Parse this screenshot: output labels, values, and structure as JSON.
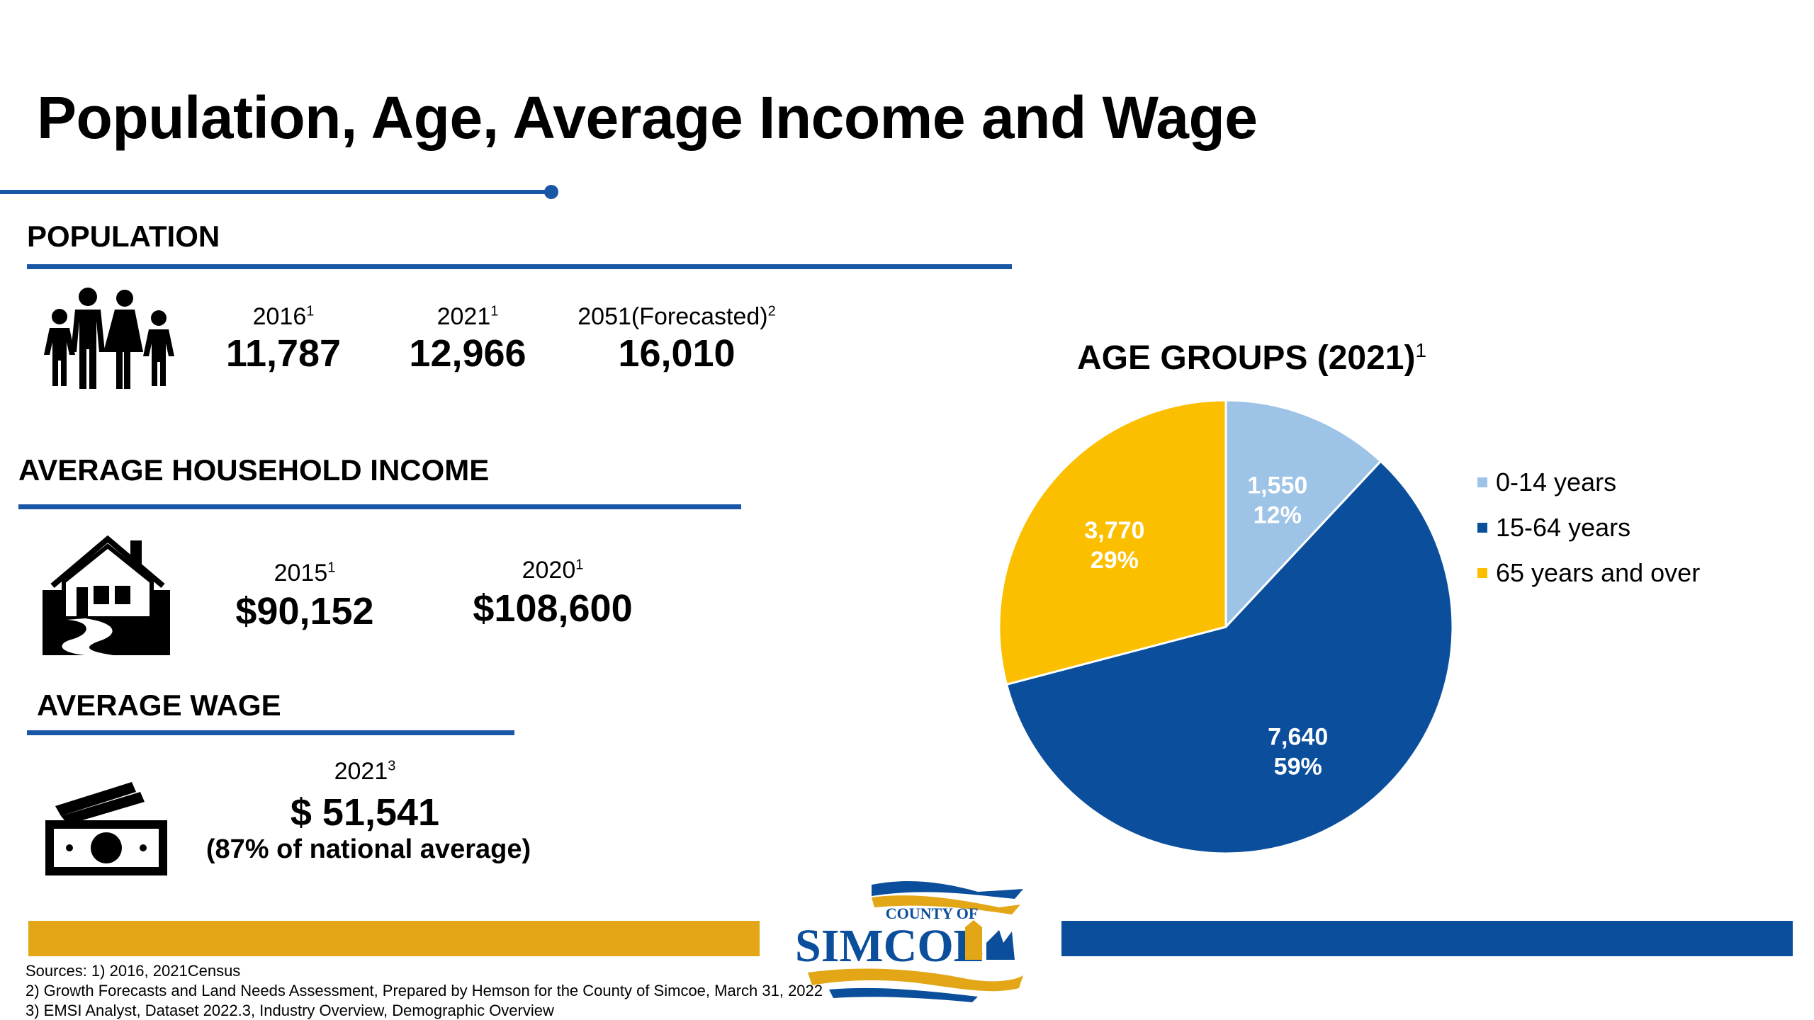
{
  "title": "Population, Age, Average Income and Wage",
  "population": {
    "heading": "POPULATION",
    "items": [
      {
        "year": "2016",
        "sup": "1",
        "value": "11,787"
      },
      {
        "year": "2021",
        "sup": "1",
        "value": "12,966"
      },
      {
        "year": "2051(Forecasted)",
        "sup": "2",
        "value": "16,010"
      }
    ]
  },
  "income": {
    "heading": "AVERAGE HOUSEHOLD INCOME",
    "items": [
      {
        "year": "2015",
        "sup": "1",
        "value": "$90,152"
      },
      {
        "year": "2020",
        "sup": "1",
        "value": "$108,600"
      }
    ]
  },
  "wage": {
    "heading": "AVERAGE WAGE",
    "year": "2021",
    "sup": "3",
    "value": "$ 51,541",
    "note": "(87% of national average)"
  },
  "chart_data": {
    "type": "pie",
    "title": "AGE GROUPS (2021)",
    "title_sup": "1",
    "slices": [
      {
        "label": "0-14 years",
        "value": 1550,
        "value_label": "1,550",
        "percent": "12%",
        "color": "#9dc3e6"
      },
      {
        "label": "15-64 years",
        "value": 7640,
        "value_label": "7,640",
        "percent": "59%",
        "color": "#0b4f9c"
      },
      {
        "label": "65 years and over",
        "value": 3770,
        "value_label": "3,770",
        "percent": "29%",
        "color": "#fbbf00"
      }
    ],
    "legend_position": "right"
  },
  "logo": {
    "top_text": "COUNTY OF",
    "main_text": "SIMCOE"
  },
  "sources": [
    "Sources: 1) 2016, 2021Census",
    "2) Growth Forecasts and Land Needs Assessment, Prepared by Hemson for the County of Simcoe, March 31, 2022",
    "3) EMSI Analyst, Dataset 2022.3, Industry Overview, Demographic Overview"
  ],
  "colors": {
    "accent_blue": "#1a56a6",
    "bar_gold": "#e2a617",
    "bar_blue": "#0b4f9c"
  }
}
